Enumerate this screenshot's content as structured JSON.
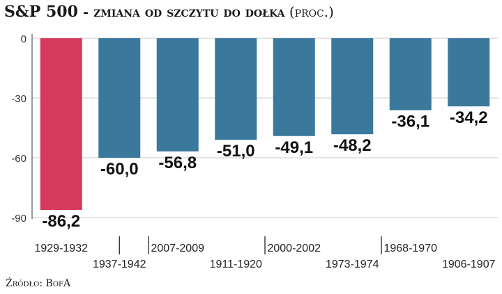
{
  "title": {
    "main": "S&P 500",
    "dash": " - ",
    "sub": "zmiana od szczytu do dołka",
    "unit": " (proc.)"
  },
  "source": "Źródło: BofA",
  "colors": {
    "highlight": "#d63a5c",
    "bar": "#3a789c",
    "grid": "#c9c9c9",
    "axis": "#333333"
  },
  "chart_data": {
    "type": "bar",
    "title": "S&P 500 - zmiana od szczytu do dołka (proc.)",
    "categories": [
      "1929-1932",
      "1937-1942",
      "2007-2009",
      "1911-1920",
      "2000-2002",
      "1973-1974",
      "1968-1970",
      "1906-1907"
    ],
    "values": [
      -86.2,
      -60.0,
      -56.8,
      -51.0,
      -49.1,
      -48.2,
      -36.1,
      -34.2
    ],
    "value_labels": [
      "-86,2",
      "-60,0",
      "-56,8",
      "-51,0",
      "-49,1",
      "-48,2",
      "-36,1",
      "-34,2"
    ],
    "highlight_index": 0,
    "yticks": [
      0,
      -30,
      -60,
      -90
    ],
    "ytick_labels": [
      "0",
      "-30",
      "-60",
      "-90"
    ],
    "ylim": [
      -90,
      0
    ],
    "grid": true,
    "xlabel": "",
    "ylabel": ""
  }
}
